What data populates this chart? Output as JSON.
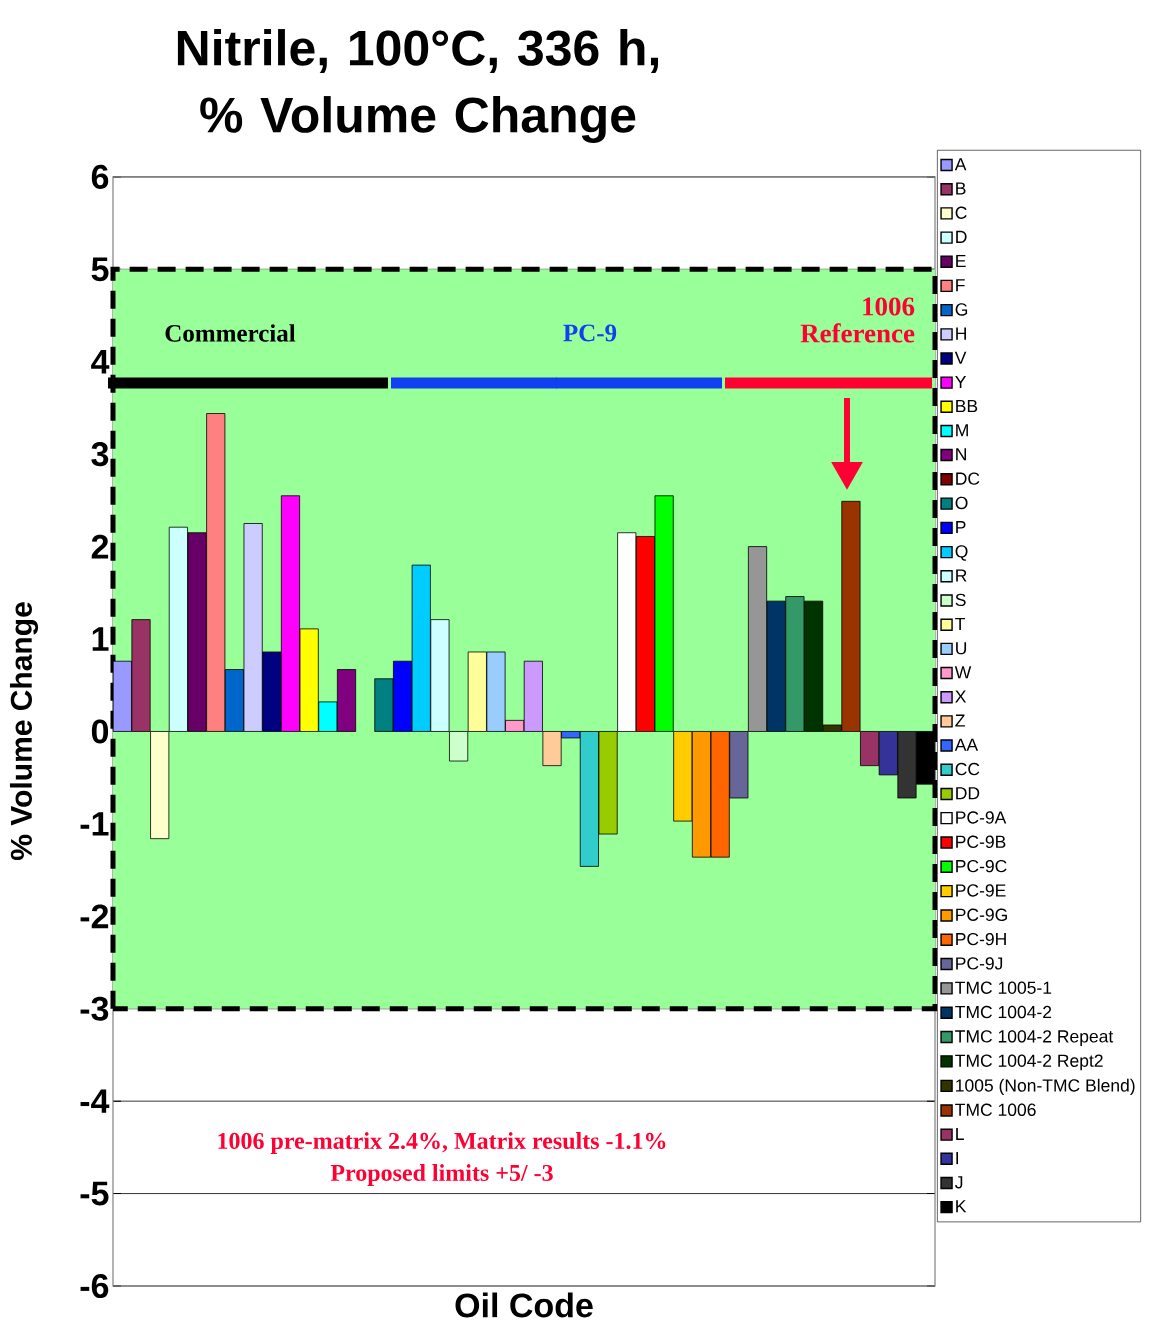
{
  "chart_data": {
    "type": "bar",
    "title": "Nitrile, 100°C, 336 h, % Volume Change",
    "xlabel": "Oil Code",
    "ylabel": "% Volume Change",
    "categories": [
      null,
      null,
      null,
      null,
      null,
      null,
      null,
      null,
      null,
      null,
      null,
      null,
      null,
      null,
      null,
      null,
      null,
      null,
      null,
      null,
      null,
      null,
      null,
      null,
      null,
      null,
      null,
      null,
      null,
      null,
      null,
      null,
      null,
      null,
      null,
      null,
      null,
      null,
      null,
      null,
      null,
      null,
      null,
      null
    ],
    "series": [
      {
        "name": "A",
        "color": "#9999ff",
        "values": [
          0.76,
          null,
          null,
          null,
          null,
          null,
          null,
          null,
          null,
          null,
          null,
          null,
          null,
          null,
          null,
          null,
          null,
          null,
          null,
          null,
          null,
          null,
          null,
          null,
          null,
          null,
          null,
          null,
          null,
          null,
          null,
          null,
          null,
          null,
          null,
          null,
          null,
          null,
          null,
          null,
          null,
          null,
          null,
          null
        ]
      },
      {
        "name": "B",
        "color": "#993366",
        "values": [
          null,
          1.21,
          null,
          null,
          null,
          null,
          null,
          null,
          null,
          null,
          null,
          null,
          null,
          null,
          null,
          null,
          null,
          null,
          null,
          null,
          null,
          null,
          null,
          null,
          null,
          null,
          null,
          null,
          null,
          null,
          null,
          null,
          null,
          null,
          null,
          null,
          null,
          null,
          null,
          null,
          null,
          null,
          null,
          null
        ]
      },
      {
        "name": "C",
        "color": "#ffffcc",
        "values": [
          null,
          null,
          -1.16,
          null,
          null,
          null,
          null,
          null,
          null,
          null,
          null,
          null,
          null,
          null,
          null,
          null,
          null,
          null,
          null,
          null,
          null,
          null,
          null,
          null,
          null,
          null,
          null,
          null,
          null,
          null,
          null,
          null,
          null,
          null,
          null,
          null,
          null,
          null,
          null,
          null,
          null,
          null,
          null,
          null
        ]
      },
      {
        "name": "D",
        "color": "#ccffff",
        "values": [
          null,
          null,
          null,
          2.21,
          null,
          null,
          null,
          null,
          null,
          null,
          null,
          null,
          null,
          null,
          null,
          null,
          null,
          null,
          null,
          null,
          null,
          null,
          null,
          null,
          null,
          null,
          null,
          null,
          null,
          null,
          null,
          null,
          null,
          null,
          null,
          null,
          null,
          null,
          null,
          null,
          null,
          null,
          null,
          null
        ]
      },
      {
        "name": "E",
        "color": "#660066",
        "values": [
          null,
          null,
          null,
          null,
          2.15,
          null,
          null,
          null,
          null,
          null,
          null,
          null,
          null,
          null,
          null,
          null,
          null,
          null,
          null,
          null,
          null,
          null,
          null,
          null,
          null,
          null,
          null,
          null,
          null,
          null,
          null,
          null,
          null,
          null,
          null,
          null,
          null,
          null,
          null,
          null,
          null,
          null,
          null,
          null
        ]
      },
      {
        "name": "F",
        "color": "#ff8080",
        "values": [
          null,
          null,
          null,
          null,
          null,
          3.44,
          null,
          null,
          null,
          null,
          null,
          null,
          null,
          null,
          null,
          null,
          null,
          null,
          null,
          null,
          null,
          null,
          null,
          null,
          null,
          null,
          null,
          null,
          null,
          null,
          null,
          null,
          null,
          null,
          null,
          null,
          null,
          null,
          null,
          null,
          null,
          null,
          null,
          null
        ]
      },
      {
        "name": "G",
        "color": "#0066cc",
        "values": [
          null,
          null,
          null,
          null,
          null,
          null,
          0.67,
          null,
          null,
          null,
          null,
          null,
          null,
          null,
          null,
          null,
          null,
          null,
          null,
          null,
          null,
          null,
          null,
          null,
          null,
          null,
          null,
          null,
          null,
          null,
          null,
          null,
          null,
          null,
          null,
          null,
          null,
          null,
          null,
          null,
          null,
          null,
          null,
          null
        ]
      },
      {
        "name": "H",
        "color": "#ccccff",
        "values": [
          null,
          null,
          null,
          null,
          null,
          null,
          null,
          2.25,
          null,
          null,
          null,
          null,
          null,
          null,
          null,
          null,
          null,
          null,
          null,
          null,
          null,
          null,
          null,
          null,
          null,
          null,
          null,
          null,
          null,
          null,
          null,
          null,
          null,
          null,
          null,
          null,
          null,
          null,
          null,
          null,
          null,
          null,
          null,
          null
        ]
      },
      {
        "name": "V",
        "color": "#000080",
        "values": [
          null,
          null,
          null,
          null,
          null,
          null,
          null,
          null,
          0.86,
          null,
          null,
          null,
          null,
          null,
          null,
          null,
          null,
          null,
          null,
          null,
          null,
          null,
          null,
          null,
          null,
          null,
          null,
          null,
          null,
          null,
          null,
          null,
          null,
          null,
          null,
          null,
          null,
          null,
          null,
          null,
          null,
          null,
          null,
          null
        ]
      },
      {
        "name": "Y",
        "color": "#ff00ff",
        "values": [
          null,
          null,
          null,
          null,
          null,
          null,
          null,
          null,
          null,
          2.55,
          null,
          null,
          null,
          null,
          null,
          null,
          null,
          null,
          null,
          null,
          null,
          null,
          null,
          null,
          null,
          null,
          null,
          null,
          null,
          null,
          null,
          null,
          null,
          null,
          null,
          null,
          null,
          null,
          null,
          null,
          null,
          null,
          null,
          null
        ]
      },
      {
        "name": "BB",
        "color": "#ffff00",
        "values": [
          null,
          null,
          null,
          null,
          null,
          null,
          null,
          null,
          null,
          null,
          1.11,
          null,
          null,
          null,
          null,
          null,
          null,
          null,
          null,
          null,
          null,
          null,
          null,
          null,
          null,
          null,
          null,
          null,
          null,
          null,
          null,
          null,
          null,
          null,
          null,
          null,
          null,
          null,
          null,
          null,
          null,
          null,
          null,
          null
        ]
      },
      {
        "name": "M",
        "color": "#00ffff",
        "values": [
          null,
          null,
          null,
          null,
          null,
          null,
          null,
          null,
          null,
          null,
          null,
          0.32,
          null,
          null,
          null,
          null,
          null,
          null,
          null,
          null,
          null,
          null,
          null,
          null,
          null,
          null,
          null,
          null,
          null,
          null,
          null,
          null,
          null,
          null,
          null,
          null,
          null,
          null,
          null,
          null,
          null,
          null,
          null,
          null
        ]
      },
      {
        "name": "N",
        "color": "#800080",
        "values": [
          null,
          null,
          null,
          null,
          null,
          null,
          null,
          null,
          null,
          null,
          null,
          null,
          0.67,
          null,
          null,
          null,
          null,
          null,
          null,
          null,
          null,
          null,
          null,
          null,
          null,
          null,
          null,
          null,
          null,
          null,
          null,
          null,
          null,
          null,
          null,
          null,
          null,
          null,
          null,
          null,
          null,
          null,
          null,
          null
        ]
      },
      {
        "name": "DC",
        "color": "#800000",
        "values": [
          null,
          null,
          null,
          null,
          null,
          null,
          null,
          null,
          null,
          null,
          null,
          null,
          null,
          null,
          null,
          null,
          null,
          null,
          null,
          null,
          null,
          null,
          null,
          null,
          null,
          null,
          null,
          null,
          null,
          null,
          null,
          null,
          null,
          null,
          null,
          null,
          null,
          null,
          null,
          null,
          null,
          null,
          null,
          null
        ]
      },
      {
        "name": "O",
        "color": "#008080",
        "values": [
          null,
          null,
          null,
          null,
          null,
          null,
          null,
          null,
          null,
          null,
          null,
          null,
          null,
          null,
          0.57,
          null,
          null,
          null,
          null,
          null,
          null,
          null,
          null,
          null,
          null,
          null,
          null,
          null,
          null,
          null,
          null,
          null,
          null,
          null,
          null,
          null,
          null,
          null,
          null,
          null,
          null,
          null,
          null,
          null
        ]
      },
      {
        "name": "P",
        "color": "#0000ff",
        "values": [
          null,
          null,
          null,
          null,
          null,
          null,
          null,
          null,
          null,
          null,
          null,
          null,
          null,
          null,
          null,
          0.76,
          null,
          null,
          null,
          null,
          null,
          null,
          null,
          null,
          null,
          null,
          null,
          null,
          null,
          null,
          null,
          null,
          null,
          null,
          null,
          null,
          null,
          null,
          null,
          null,
          null,
          null,
          null,
          null
        ]
      },
      {
        "name": "Q",
        "color": "#00ccff",
        "values": [
          null,
          null,
          null,
          null,
          null,
          null,
          null,
          null,
          null,
          null,
          null,
          null,
          null,
          null,
          null,
          null,
          1.8,
          null,
          null,
          null,
          null,
          null,
          null,
          null,
          null,
          null,
          null,
          null,
          null,
          null,
          null,
          null,
          null,
          null,
          null,
          null,
          null,
          null,
          null,
          null,
          null,
          null,
          null,
          null
        ]
      },
      {
        "name": "R",
        "color": "#ccffff",
        "values": [
          null,
          null,
          null,
          null,
          null,
          null,
          null,
          null,
          null,
          null,
          null,
          null,
          null,
          null,
          null,
          null,
          null,
          1.21,
          null,
          null,
          null,
          null,
          null,
          null,
          null,
          null,
          null,
          null,
          null,
          null,
          null,
          null,
          null,
          null,
          null,
          null,
          null,
          null,
          null,
          null,
          null,
          null,
          null,
          null
        ]
      },
      {
        "name": "S",
        "color": "#ccffcc",
        "values": [
          null,
          null,
          null,
          null,
          null,
          null,
          null,
          null,
          null,
          null,
          null,
          null,
          null,
          null,
          null,
          null,
          null,
          null,
          -0.32,
          null,
          null,
          null,
          null,
          null,
          null,
          null,
          null,
          null,
          null,
          null,
          null,
          null,
          null,
          null,
          null,
          null,
          null,
          null,
          null,
          null,
          null,
          null,
          null,
          null
        ]
      },
      {
        "name": "T",
        "color": "#ffff99",
        "values": [
          null,
          null,
          null,
          null,
          null,
          null,
          null,
          null,
          null,
          null,
          null,
          null,
          null,
          null,
          null,
          null,
          null,
          null,
          null,
          0.86,
          null,
          null,
          null,
          null,
          null,
          null,
          null,
          null,
          null,
          null,
          null,
          null,
          null,
          null,
          null,
          null,
          null,
          null,
          null,
          null,
          null,
          null,
          null,
          null
        ]
      },
      {
        "name": "U",
        "color": "#99ccff",
        "values": [
          null,
          null,
          null,
          null,
          null,
          null,
          null,
          null,
          null,
          null,
          null,
          null,
          null,
          null,
          null,
          null,
          null,
          null,
          null,
          null,
          0.86,
          null,
          null,
          null,
          null,
          null,
          null,
          null,
          null,
          null,
          null,
          null,
          null,
          null,
          null,
          null,
          null,
          null,
          null,
          null,
          null,
          null,
          null,
          null
        ]
      },
      {
        "name": "W",
        "color": "#ff99cc",
        "values": [
          null,
          null,
          null,
          null,
          null,
          null,
          null,
          null,
          null,
          null,
          null,
          null,
          null,
          null,
          null,
          null,
          null,
          null,
          null,
          null,
          null,
          0.12,
          null,
          null,
          null,
          null,
          null,
          null,
          null,
          null,
          null,
          null,
          null,
          null,
          null,
          null,
          null,
          null,
          null,
          null,
          null,
          null,
          null,
          null
        ]
      },
      {
        "name": "X",
        "color": "#cc99ff",
        "values": [
          null,
          null,
          null,
          null,
          null,
          null,
          null,
          null,
          null,
          null,
          null,
          null,
          null,
          null,
          null,
          null,
          null,
          null,
          null,
          null,
          null,
          null,
          0.76,
          null,
          null,
          null,
          null,
          null,
          null,
          null,
          null,
          null,
          null,
          null,
          null,
          null,
          null,
          null,
          null,
          null,
          null,
          null,
          null,
          null
        ]
      },
      {
        "name": "Z",
        "color": "#ffcc99",
        "values": [
          null,
          null,
          null,
          null,
          null,
          null,
          null,
          null,
          null,
          null,
          null,
          null,
          null,
          null,
          null,
          null,
          null,
          null,
          null,
          null,
          null,
          null,
          null,
          -0.37,
          null,
          null,
          null,
          null,
          null,
          null,
          null,
          null,
          null,
          null,
          null,
          null,
          null,
          null,
          null,
          null,
          null,
          null,
          null,
          null
        ]
      },
      {
        "name": "AA",
        "color": "#3366ff",
        "values": [
          null,
          null,
          null,
          null,
          null,
          null,
          null,
          null,
          null,
          null,
          null,
          null,
          null,
          null,
          null,
          null,
          null,
          null,
          null,
          null,
          null,
          null,
          null,
          null,
          -0.07,
          null,
          null,
          null,
          null,
          null,
          null,
          null,
          null,
          null,
          null,
          null,
          null,
          null,
          null,
          null,
          null,
          null,
          null,
          null
        ]
      },
      {
        "name": "CC",
        "color": "#33cccc",
        "values": [
          null,
          null,
          null,
          null,
          null,
          null,
          null,
          null,
          null,
          null,
          null,
          null,
          null,
          null,
          null,
          null,
          null,
          null,
          null,
          null,
          null,
          null,
          null,
          null,
          null,
          -1.46,
          null,
          null,
          null,
          null,
          null,
          null,
          null,
          null,
          null,
          null,
          null,
          null,
          null,
          null,
          null,
          null,
          null,
          null
        ]
      },
      {
        "name": "DD",
        "color": "#99cc00",
        "values": [
          null,
          null,
          null,
          null,
          null,
          null,
          null,
          null,
          null,
          null,
          null,
          null,
          null,
          null,
          null,
          null,
          null,
          null,
          null,
          null,
          null,
          null,
          null,
          null,
          null,
          null,
          -1.11,
          null,
          null,
          null,
          null,
          null,
          null,
          null,
          null,
          null,
          null,
          null,
          null,
          null,
          null,
          null,
          null,
          null
        ]
      },
      {
        "name": "PC-9A",
        "color": "#ffffff",
        "values": [
          null,
          null,
          null,
          null,
          null,
          null,
          null,
          null,
          null,
          null,
          null,
          null,
          null,
          null,
          null,
          null,
          null,
          null,
          null,
          null,
          null,
          null,
          null,
          null,
          null,
          null,
          null,
          2.15,
          null,
          null,
          null,
          null,
          null,
          null,
          null,
          null,
          null,
          null,
          null,
          null,
          null,
          null,
          null,
          null
        ]
      },
      {
        "name": "PC-9B",
        "color": "#ff0000",
        "values": [
          null,
          null,
          null,
          null,
          null,
          null,
          null,
          null,
          null,
          null,
          null,
          null,
          null,
          null,
          null,
          null,
          null,
          null,
          null,
          null,
          null,
          null,
          null,
          null,
          null,
          null,
          null,
          null,
          2.11,
          null,
          null,
          null,
          null,
          null,
          null,
          null,
          null,
          null,
          null,
          null,
          null,
          null,
          null,
          null
        ]
      },
      {
        "name": "PC-9C",
        "color": "#00ff00",
        "values": [
          null,
          null,
          null,
          null,
          null,
          null,
          null,
          null,
          null,
          null,
          null,
          null,
          null,
          null,
          null,
          null,
          null,
          null,
          null,
          null,
          null,
          null,
          null,
          null,
          null,
          null,
          null,
          null,
          null,
          2.55,
          null,
          null,
          null,
          null,
          null,
          null,
          null,
          null,
          null,
          null,
          null,
          null,
          null,
          null
        ]
      },
      {
        "name": "PC-9E",
        "color": "#ffcc00",
        "values": [
          null,
          null,
          null,
          null,
          null,
          null,
          null,
          null,
          null,
          null,
          null,
          null,
          null,
          null,
          null,
          null,
          null,
          null,
          null,
          null,
          null,
          null,
          null,
          null,
          null,
          null,
          null,
          null,
          null,
          null,
          -0.97,
          null,
          null,
          null,
          null,
          null,
          null,
          null,
          null,
          null,
          null,
          null,
          null,
          null
        ]
      },
      {
        "name": "PC-9G",
        "color": "#ff9900",
        "values": [
          null,
          null,
          null,
          null,
          null,
          null,
          null,
          null,
          null,
          null,
          null,
          null,
          null,
          null,
          null,
          null,
          null,
          null,
          null,
          null,
          null,
          null,
          null,
          null,
          null,
          null,
          null,
          null,
          null,
          null,
          null,
          -1.36,
          null,
          null,
          null,
          null,
          null,
          null,
          null,
          null,
          null,
          null,
          null,
          null
        ]
      },
      {
        "name": "PC-9H",
        "color": "#ff6600",
        "values": [
          null,
          null,
          null,
          null,
          null,
          null,
          null,
          null,
          null,
          null,
          null,
          null,
          null,
          null,
          null,
          null,
          null,
          null,
          null,
          null,
          null,
          null,
          null,
          null,
          null,
          null,
          null,
          null,
          null,
          null,
          null,
          null,
          -1.36,
          null,
          null,
          null,
          null,
          null,
          null,
          null,
          null,
          null,
          null,
          null
        ]
      },
      {
        "name": "PC-9J",
        "color": "#666699",
        "values": [
          null,
          null,
          null,
          null,
          null,
          null,
          null,
          null,
          null,
          null,
          null,
          null,
          null,
          null,
          null,
          null,
          null,
          null,
          null,
          null,
          null,
          null,
          null,
          null,
          null,
          null,
          null,
          null,
          null,
          null,
          null,
          null,
          null,
          -0.72,
          null,
          null,
          null,
          null,
          null,
          null,
          null,
          null,
          null,
          null
        ]
      },
      {
        "name": "TMC 1005-1",
        "color": "#969696",
        "values": [
          null,
          null,
          null,
          null,
          null,
          null,
          null,
          null,
          null,
          null,
          null,
          null,
          null,
          null,
          null,
          null,
          null,
          null,
          null,
          null,
          null,
          null,
          null,
          null,
          null,
          null,
          null,
          null,
          null,
          null,
          null,
          null,
          null,
          null,
          2.0,
          null,
          null,
          null,
          null,
          null,
          null,
          null,
          null,
          null
        ]
      },
      {
        "name": "TMC 1004-2",
        "color": "#003366",
        "values": [
          null,
          null,
          null,
          null,
          null,
          null,
          null,
          null,
          null,
          null,
          null,
          null,
          null,
          null,
          null,
          null,
          null,
          null,
          null,
          null,
          null,
          null,
          null,
          null,
          null,
          null,
          null,
          null,
          null,
          null,
          null,
          null,
          null,
          null,
          null,
          1.41,
          null,
          null,
          null,
          null,
          null,
          null,
          null,
          null
        ]
      },
      {
        "name": "TMC 1004-2 Repeat",
        "color": "#339966",
        "values": [
          null,
          null,
          null,
          null,
          null,
          null,
          null,
          null,
          null,
          null,
          null,
          null,
          null,
          null,
          null,
          null,
          null,
          null,
          null,
          null,
          null,
          null,
          null,
          null,
          null,
          null,
          null,
          null,
          null,
          null,
          null,
          null,
          null,
          null,
          null,
          null,
          1.46,
          null,
          null,
          null,
          null,
          null,
          null,
          null
        ]
      },
      {
        "name": "TMC 1004-2 Rept2",
        "color": "#003300",
        "values": [
          null,
          null,
          null,
          null,
          null,
          null,
          null,
          null,
          null,
          null,
          null,
          null,
          null,
          null,
          null,
          null,
          null,
          null,
          null,
          null,
          null,
          null,
          null,
          null,
          null,
          null,
          null,
          null,
          null,
          null,
          null,
          null,
          null,
          null,
          null,
          null,
          null,
          1.41,
          null,
          null,
          null,
          null,
          null,
          null
        ]
      },
      {
        "name": "1005 (Non-TMC Blend)",
        "color": "#333300",
        "values": [
          null,
          null,
          null,
          null,
          null,
          null,
          null,
          null,
          null,
          null,
          null,
          null,
          null,
          null,
          null,
          null,
          null,
          null,
          null,
          null,
          null,
          null,
          null,
          null,
          null,
          null,
          null,
          null,
          null,
          null,
          null,
          null,
          null,
          null,
          null,
          null,
          null,
          null,
          0.07,
          null,
          null,
          null,
          null,
          null
        ]
      },
      {
        "name": "TMC 1006",
        "color": "#993300",
        "values": [
          null,
          null,
          null,
          null,
          null,
          null,
          null,
          null,
          null,
          null,
          null,
          null,
          null,
          null,
          null,
          null,
          null,
          null,
          null,
          null,
          null,
          null,
          null,
          null,
          null,
          null,
          null,
          null,
          null,
          null,
          null,
          null,
          null,
          null,
          null,
          null,
          null,
          null,
          null,
          2.49,
          null,
          null,
          null,
          null
        ]
      },
      {
        "name": "L",
        "color": "#993366",
        "values": [
          null,
          null,
          null,
          null,
          null,
          null,
          null,
          null,
          null,
          null,
          null,
          null,
          null,
          null,
          null,
          null,
          null,
          null,
          null,
          null,
          null,
          null,
          null,
          null,
          null,
          null,
          null,
          null,
          null,
          null,
          null,
          null,
          null,
          null,
          null,
          null,
          null,
          null,
          null,
          null,
          -0.37,
          null,
          null,
          null
        ]
      },
      {
        "name": "I",
        "color": "#333399",
        "values": [
          null,
          null,
          null,
          null,
          null,
          null,
          null,
          null,
          null,
          null,
          null,
          null,
          null,
          null,
          null,
          null,
          null,
          null,
          null,
          null,
          null,
          null,
          null,
          null,
          null,
          null,
          null,
          null,
          null,
          null,
          null,
          null,
          null,
          null,
          null,
          null,
          null,
          null,
          null,
          null,
          null,
          -0.47,
          null,
          null
        ]
      },
      {
        "name": "J",
        "color": "#333333",
        "values": [
          null,
          null,
          null,
          null,
          null,
          null,
          null,
          null,
          null,
          null,
          null,
          null,
          null,
          null,
          null,
          null,
          null,
          null,
          null,
          null,
          null,
          null,
          null,
          null,
          null,
          null,
          null,
          null,
          null,
          null,
          null,
          null,
          null,
          null,
          null,
          null,
          null,
          null,
          null,
          null,
          null,
          null,
          -0.72,
          null
        ]
      },
      {
        "name": "K",
        "color": "#000000",
        "values": [
          null,
          null,
          null,
          null,
          null,
          null,
          null,
          null,
          null,
          null,
          null,
          null,
          null,
          null,
          null,
          null,
          null,
          null,
          null,
          null,
          null,
          null,
          null,
          null,
          null,
          null,
          null,
          null,
          null,
          null,
          null,
          null,
          null,
          null,
          null,
          null,
          null,
          null,
          null,
          null,
          null,
          null,
          null,
          -0.57
        ]
      }
    ],
    "ylim": [
      -6,
      6
    ],
    "yticks": [
      -6,
      -5,
      -4,
      -3,
      -2,
      -1,
      0,
      1,
      2,
      3,
      4,
      5,
      6
    ],
    "grid": "y",
    "legend": "right",
    "tick_labels": "y",
    "bands": [
      {
        "axis": "y",
        "from": -3,
        "to": 5,
        "color": "#99ff99"
      }
    ],
    "annotations": [
      "Commercial",
      "PC-9",
      "1006 Reference",
      "1006 pre-matrix 2.4%, Matrix results -1.1%",
      "Proposed limits +5/ -3"
    ]
  }
}
